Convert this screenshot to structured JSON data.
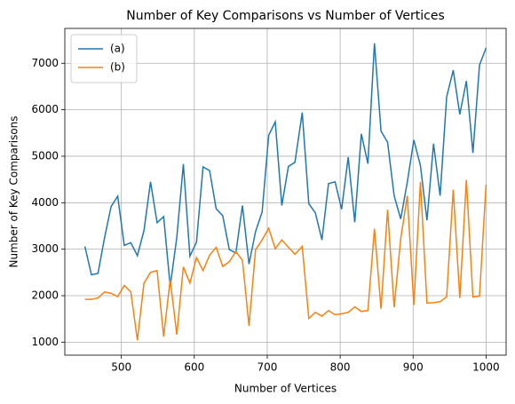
{
  "chart_data": {
    "type": "line",
    "title": "Number of Key Comparisons vs Number of Vertices",
    "x_label": "Number of Vertices",
    "y_label": "Number of Key Comparisons",
    "x": [
      450,
      459,
      468,
      477,
      486,
      495,
      504,
      513,
      522,
      531,
      540,
      549,
      558,
      567,
      576,
      585,
      594,
      603,
      612,
      621,
      630,
      639,
      648,
      657,
      666,
      675,
      684,
      693,
      702,
      711,
      720,
      729,
      738,
      748,
      757,
      766,
      775,
      784,
      793,
      802,
      811,
      820,
      829,
      838,
      847,
      856,
      865,
      874,
      883,
      892,
      901,
      910,
      919,
      928,
      937,
      946,
      955,
      964,
      973,
      982,
      991,
      1000
    ],
    "series": [
      {
        "name": "(a)",
        "color": "#1f77b4",
        "values": [
          3060,
          2450,
          2480,
          3250,
          3920,
          4140,
          3080,
          3140,
          2860,
          3400,
          4450,
          3570,
          3700,
          2200,
          3250,
          4830,
          2850,
          3150,
          4770,
          4690,
          3870,
          3720,
          2990,
          2920,
          3940,
          2680,
          3380,
          3800,
          5450,
          5740,
          3940,
          4780,
          4870,
          5940,
          3980,
          3780,
          3200,
          4410,
          4450,
          3860,
          4980,
          3580,
          5480,
          4840,
          7430,
          5540,
          5300,
          4150,
          3650,
          4440,
          5350,
          4800,
          3620,
          5270,
          4150,
          6280,
          6850,
          5900,
          6620,
          5070,
          6960,
          7330
        ]
      },
      {
        "name": "(b)",
        "color": "#ff7f0e",
        "values": [
          1920,
          1920,
          1950,
          2080,
          2050,
          1980,
          2220,
          2080,
          1040,
          2270,
          2500,
          2540,
          1120,
          2350,
          1160,
          2620,
          2270,
          2820,
          2540,
          2870,
          3040,
          2630,
          2730,
          2950,
          2760,
          1350,
          2990,
          3200,
          3450,
          3010,
          3200,
          3040,
          2890,
          3060,
          1510,
          1640,
          1560,
          1680,
          1590,
          1610,
          1640,
          1760,
          1660,
          1680,
          3440,
          1720,
          3850,
          1750,
          3220,
          4150,
          1800,
          4450,
          1840,
          1850,
          1870,
          1980,
          4280,
          1950,
          4490,
          1970,
          1990,
          4390
        ]
      }
    ],
    "xlim": [
      422.5,
      1027.5
    ],
    "xticks": [
      500,
      600,
      700,
      800,
      900,
      1000
    ],
    "ylim": [
      720,
      7750
    ],
    "yticks": [
      1000,
      2000,
      3000,
      4000,
      5000,
      6000,
      7000
    ],
    "grid": true,
    "legend": "upper left"
  }
}
